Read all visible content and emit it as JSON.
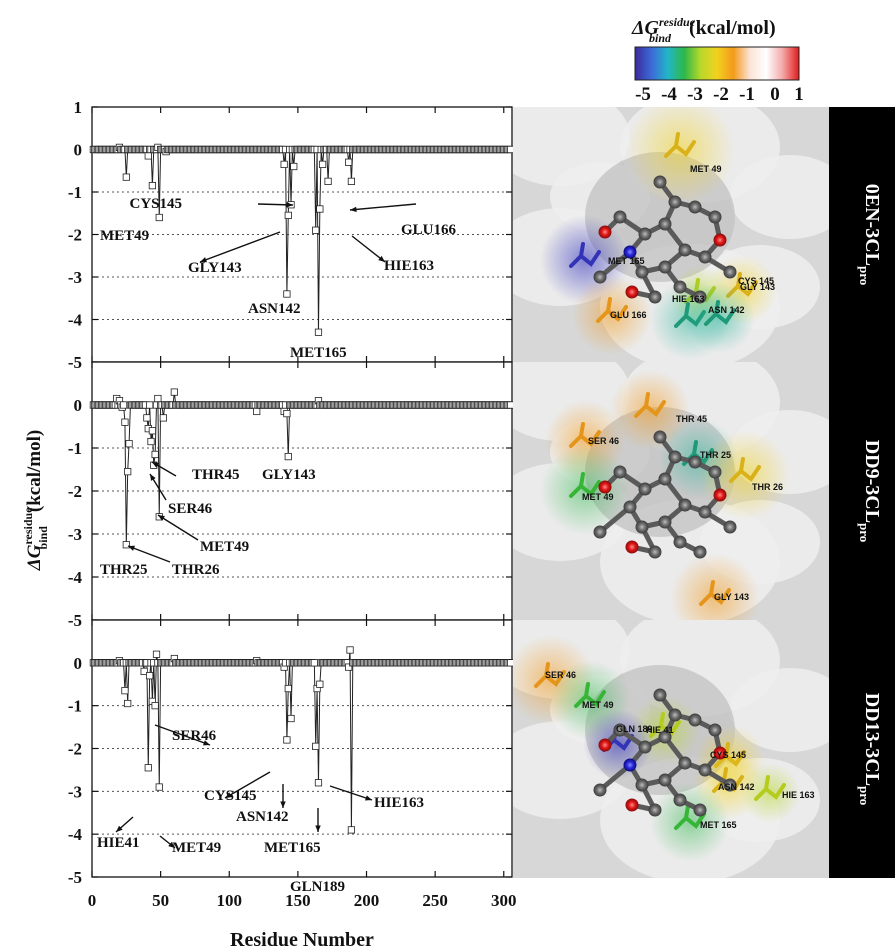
{
  "colorbar": {
    "label_main": "ΔG",
    "label_sup": "residue",
    "label_sub": "bind",
    "label_unit": "(kcal/mol)",
    "ticks": [
      "-5",
      "-4",
      "-3",
      "-2",
      "-1",
      "0",
      "1"
    ],
    "colors": [
      "#3a2a9a",
      "#3d6ad8",
      "#22b5c8",
      "#2db84a",
      "#b8d82a",
      "#f2d21e",
      "#f39a1c",
      "#fbe3d5",
      "#ffffff",
      "#f3a9a9",
      "#e11a1a"
    ]
  },
  "y_axis_label": {
    "main": "ΔG",
    "sup": "residue",
    "sub": "bind",
    "unit": "(kcal/mol)"
  },
  "x_axis_label": "Residue Number",
  "y_tick_labels": [
    "1",
    "0",
    "-1",
    "-2",
    "-3",
    "-4",
    "-5"
  ],
  "x_tick_labels": [
    "0",
    "50",
    "100",
    "150",
    "200",
    "250",
    "300"
  ],
  "chart_data": [
    {
      "type": "line",
      "complex": "0EN-3CLpro",
      "side_label": "0EN-3CL",
      "side_sup": "pro",
      "xlim": [
        0,
        306
      ],
      "ylim": [
        -5,
        1
      ],
      "grid": "dotted horizontal at -1 to -4",
      "spikes": [
        {
          "x": 25,
          "y": -0.65
        },
        {
          "x": 41,
          "y": -0.15
        },
        {
          "x": 44,
          "y": -0.85
        },
        {
          "x": 49,
          "y": -1.6
        },
        {
          "x": 54,
          "y": -0.05
        },
        {
          "x": 140,
          "y": -0.35
        },
        {
          "x": 142,
          "y": -3.4
        },
        {
          "x": 143,
          "y": -1.55
        },
        {
          "x": 145,
          "y": -1.3
        },
        {
          "x": 147,
          "y": -0.4
        },
        {
          "x": 163,
          "y": -1.9
        },
        {
          "x": 165,
          "y": -4.3
        },
        {
          "x": 166,
          "y": -1.4
        },
        {
          "x": 168,
          "y": -0.35
        },
        {
          "x": 172,
          "y": -0.75
        },
        {
          "x": 187,
          "y": -0.3
        },
        {
          "x": 189,
          "y": -0.75
        }
      ],
      "positive": [
        {
          "x": 20,
          "y": 0.05
        },
        {
          "x": 48,
          "y": 0.05
        },
        {
          "x": 305,
          "y": 0.0
        }
      ],
      "annotations": [
        {
          "label": "CYS145",
          "residue": 145
        },
        {
          "label": "GLU166",
          "residue": 166
        },
        {
          "label": "MET49",
          "residue": 49
        },
        {
          "label": "GLY143",
          "residue": 143
        },
        {
          "label": "HIE163",
          "residue": 163
        },
        {
          "label": "ASN142",
          "residue": 142
        },
        {
          "label": "MET165",
          "residue": 165
        }
      ],
      "structure_labels": [
        "MET 49",
        "MET 165",
        "CYS 145",
        "GLY 143",
        "HIE 163",
        "GLU 166",
        "ASN 142"
      ]
    },
    {
      "type": "line",
      "complex": "DD9-3CLpro",
      "side_label": "DD9-3CL",
      "side_sup": "pro",
      "xlim": [
        0,
        306
      ],
      "ylim": [
        -5,
        1
      ],
      "grid": "dotted horizontal at -1 to -4",
      "spikes": [
        {
          "x": 22,
          "y": -0.05
        },
        {
          "x": 24,
          "y": -0.4
        },
        {
          "x": 25,
          "y": -3.25
        },
        {
          "x": 26,
          "y": -1.55
        },
        {
          "x": 27,
          "y": -0.9
        },
        {
          "x": 40,
          "y": -0.3
        },
        {
          "x": 41,
          "y": -0.55
        },
        {
          "x": 43,
          "y": -0.85
        },
        {
          "x": 44,
          "y": -0.6
        },
        {
          "x": 45,
          "y": -1.4
        },
        {
          "x": 46,
          "y": -1.15
        },
        {
          "x": 48,
          "y": -0.3
        },
        {
          "x": 49,
          "y": -2.6
        },
        {
          "x": 52,
          "y": -0.3
        },
        {
          "x": 120,
          "y": -0.15
        },
        {
          "x": 140,
          "y": -0.15
        },
        {
          "x": 142,
          "y": -0.2
        },
        {
          "x": 143,
          "y": -1.2
        }
      ],
      "positive": [
        {
          "x": 18,
          "y": 0.15
        },
        {
          "x": 20,
          "y": 0.1
        },
        {
          "x": 48,
          "y": 0.15
        },
        {
          "x": 60,
          "y": 0.3
        },
        {
          "x": 165,
          "y": 0.1
        },
        {
          "x": 305,
          "y": 0.0
        }
      ],
      "annotations": [
        {
          "label": "THR45",
          "residue": 45
        },
        {
          "label": "GLY143",
          "residue": 143
        },
        {
          "label": "SER46",
          "residue": 46
        },
        {
          "label": "MET49",
          "residue": 49
        },
        {
          "label": "THR25",
          "residue": 25
        },
        {
          "label": "THR26",
          "residue": 26
        }
      ],
      "structure_labels": [
        "THR 45",
        "SER 46",
        "THR 25",
        "THR 26",
        "MET 49",
        "GLY 143"
      ]
    },
    {
      "type": "line",
      "complex": "DD13-3CLpro",
      "side_label": "DD13-3CL",
      "side_sup": "pro",
      "xlim": [
        0,
        306
      ],
      "ylim": [
        -5,
        1
      ],
      "grid": "dotted horizontal at -1 to -4",
      "spikes": [
        {
          "x": 24,
          "y": -0.65
        },
        {
          "x": 26,
          "y": -0.95
        },
        {
          "x": 38,
          "y": -0.2
        },
        {
          "x": 41,
          "y": -2.45
        },
        {
          "x": 42,
          "y": -0.3
        },
        {
          "x": 44,
          "y": -0.9
        },
        {
          "x": 46,
          "y": -1.0
        },
        {
          "x": 49,
          "y": -2.9
        },
        {
          "x": 140,
          "y": -0.1
        },
        {
          "x": 142,
          "y": -1.8
        },
        {
          "x": 143,
          "y": -0.6
        },
        {
          "x": 145,
          "y": -1.3
        },
        {
          "x": 163,
          "y": -1.95
        },
        {
          "x": 164,
          "y": -0.6
        },
        {
          "x": 165,
          "y": -2.8
        },
        {
          "x": 166,
          "y": -0.5
        },
        {
          "x": 187,
          "y": -0.1
        },
        {
          "x": 189,
          "y": -3.9
        }
      ],
      "positive": [
        {
          "x": 20,
          "y": 0.05
        },
        {
          "x": 47,
          "y": 0.2
        },
        {
          "x": 60,
          "y": 0.1
        },
        {
          "x": 120,
          "y": 0.05
        },
        {
          "x": 188,
          "y": 0.3
        },
        {
          "x": 305,
          "y": 0.0
        }
      ],
      "annotations": [
        {
          "label": "SER46",
          "residue": 46
        },
        {
          "label": "CYS145",
          "residue": 145
        },
        {
          "label": "HIE163",
          "residue": 163
        },
        {
          "label": "ASN142",
          "residue": 142
        },
        {
          "label": "HIE41",
          "residue": 41
        },
        {
          "label": "MET49",
          "residue": 49
        },
        {
          "label": "MET165",
          "residue": 165
        },
        {
          "label": "GLN189",
          "residue": 189
        }
      ],
      "structure_labels": [
        "SER 46",
        "MET 49",
        "HIE 41",
        "GLN 189",
        "CYS 145",
        "ASN 142",
        "HIE 163",
        "MET 165"
      ]
    }
  ]
}
